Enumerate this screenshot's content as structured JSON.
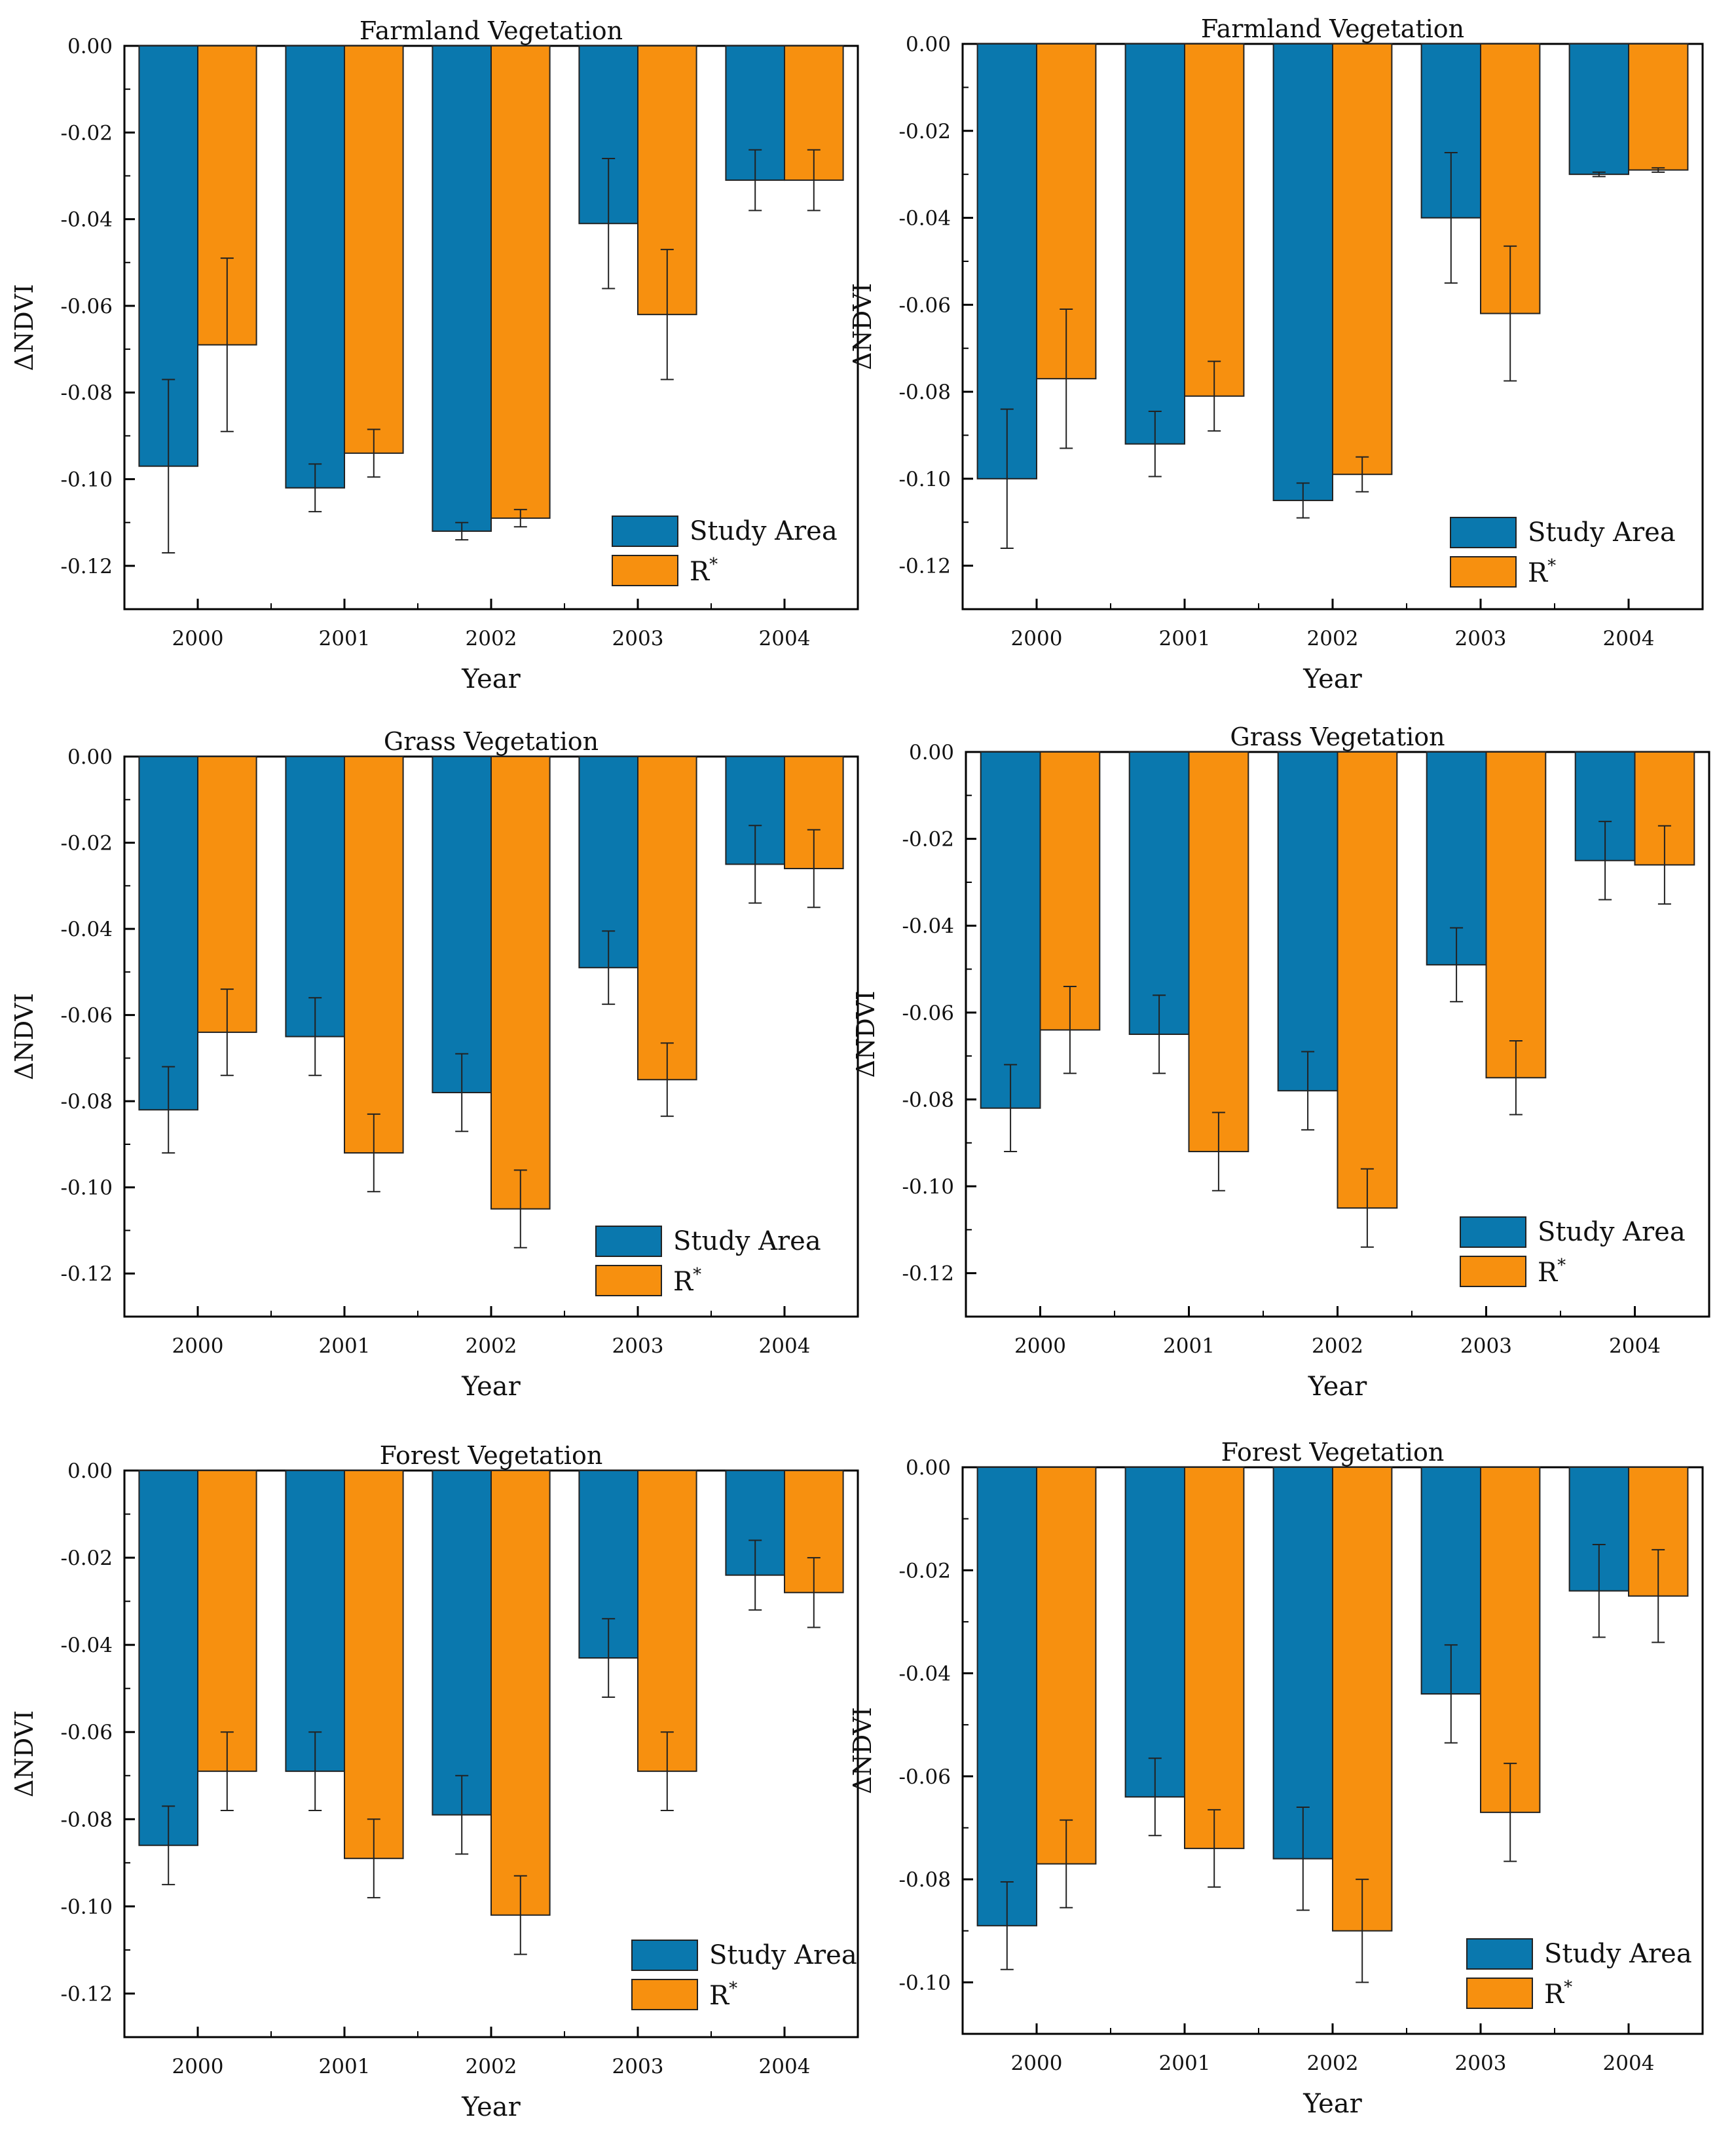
{
  "colors": {
    "study_area": "#0a78ae",
    "r_star": "#f7900f",
    "axis": "#000000"
  },
  "legend": {
    "study_area": "Study Area",
    "r_star_base": "R",
    "r_star_sup": "*"
  },
  "chart_data": [
    {
      "type": "bar",
      "title": "Farmland Vegetation",
      "xlabel": "Year",
      "ylabel": "ΔNDVI",
      "categories": [
        "2000",
        "2001",
        "2002",
        "2003",
        "2004"
      ],
      "ylim": [
        -0.13,
        0.0
      ],
      "yticks": [
        "0.00",
        "-0.02",
        "-0.04",
        "-0.06",
        "-0.08",
        "-0.10",
        "-0.12"
      ],
      "series": [
        {
          "name": "Study Area",
          "values": [
            -0.097,
            -0.102,
            -0.112,
            -0.041,
            -0.031
          ],
          "errors": [
            0.02,
            0.0055,
            0.002,
            0.015,
            0.007
          ]
        },
        {
          "name": "R*",
          "values": [
            -0.069,
            -0.094,
            -0.109,
            -0.062,
            -0.031
          ],
          "errors": [
            0.02,
            0.0055,
            0.002,
            0.015,
            0.007
          ]
        }
      ]
    },
    {
      "type": "bar",
      "title": "Farmland Vegetation",
      "xlabel": "Year",
      "ylabel": "ΔNDVI",
      "categories": [
        "2000",
        "2001",
        "2002",
        "2003",
        "2004"
      ],
      "ylim": [
        -0.13,
        0.0
      ],
      "yticks": [
        "0.00",
        "-0.02",
        "-0.04",
        "-0.06",
        "-0.08",
        "-0.10",
        "-0.12"
      ],
      "series": [
        {
          "name": "Study Area",
          "values": [
            -0.1,
            -0.092,
            -0.105,
            -0.04,
            -0.03
          ],
          "errors": [
            0.016,
            0.0075,
            0.004,
            0.015,
            0.0005
          ]
        },
        {
          "name": "R*",
          "values": [
            -0.077,
            -0.081,
            -0.099,
            -0.062,
            -0.029
          ],
          "errors": [
            0.016,
            0.008,
            0.004,
            0.0155,
            0.0005
          ]
        }
      ]
    },
    {
      "type": "bar",
      "title": "Grass Vegetation",
      "xlabel": "Year",
      "ylabel": "ΔNDVI",
      "categories": [
        "2000",
        "2001",
        "2002",
        "2003",
        "2004"
      ],
      "ylim": [
        -0.13,
        0.0
      ],
      "yticks": [
        "0.00",
        "-0.02",
        "-0.04",
        "-0.06",
        "-0.08",
        "-0.10",
        "-0.12"
      ],
      "series": [
        {
          "name": "Study Area",
          "values": [
            -0.082,
            -0.065,
            -0.078,
            -0.049,
            -0.025
          ],
          "errors": [
            0.01,
            0.009,
            0.009,
            0.0085,
            0.009
          ]
        },
        {
          "name": "R*",
          "values": [
            -0.064,
            -0.092,
            -0.105,
            -0.075,
            -0.026
          ],
          "errors": [
            0.01,
            0.009,
            0.009,
            0.0085,
            0.009
          ]
        }
      ]
    },
    {
      "type": "bar",
      "title": "Grass Vegetation",
      "xlabel": "Year",
      "ylabel": "ΔNDVI",
      "categories": [
        "2000",
        "2001",
        "2002",
        "2003",
        "2004"
      ],
      "ylim": [
        -0.13,
        0.0
      ],
      "yticks": [
        "0.00",
        "-0.02",
        "-0.04",
        "-0.06",
        "-0.08",
        "-0.10",
        "-0.12"
      ],
      "series": [
        {
          "name": "Study Area",
          "values": [
            -0.082,
            -0.065,
            -0.078,
            -0.049,
            -0.025
          ],
          "errors": [
            0.01,
            0.009,
            0.009,
            0.0085,
            0.009
          ]
        },
        {
          "name": "R*",
          "values": [
            -0.064,
            -0.092,
            -0.105,
            -0.075,
            -0.026
          ],
          "errors": [
            0.01,
            0.009,
            0.009,
            0.0085,
            0.009
          ]
        }
      ]
    },
    {
      "type": "bar",
      "title": "Forest Vegetation",
      "xlabel": "Year",
      "ylabel": "ΔNDVI",
      "categories": [
        "2000",
        "2001",
        "2002",
        "2003",
        "2004"
      ],
      "ylim": [
        -0.13,
        0.0
      ],
      "yticks": [
        "0.00",
        "-0.02",
        "-0.04",
        "-0.06",
        "-0.08",
        "-0.10",
        "-0.12"
      ],
      "series": [
        {
          "name": "Study Area",
          "values": [
            -0.086,
            -0.069,
            -0.079,
            -0.043,
            -0.024
          ],
          "errors": [
            0.009,
            0.009,
            0.009,
            0.009,
            0.008
          ]
        },
        {
          "name": "R*",
          "values": [
            -0.069,
            -0.089,
            -0.102,
            -0.069,
            -0.028
          ],
          "errors": [
            0.009,
            0.009,
            0.009,
            0.009,
            0.008
          ]
        }
      ]
    },
    {
      "type": "bar",
      "title": "Forest Vegetation",
      "xlabel": "Year",
      "ylabel": "ΔNDVI",
      "categories": [
        "2000",
        "2001",
        "2002",
        "2003",
        "2004"
      ],
      "ylim": [
        -0.11,
        0.0
      ],
      "yticks": [
        "0.00",
        "-0.02",
        "-0.04",
        "-0.06",
        "-0.08",
        "-0.10"
      ],
      "series": [
        {
          "name": "Study Area",
          "values": [
            -0.089,
            -0.064,
            -0.076,
            -0.044,
            -0.024
          ],
          "errors": [
            0.0085,
            0.0075,
            0.01,
            0.0095,
            0.009
          ]
        },
        {
          "name": "R*",
          "values": [
            -0.077,
            -0.074,
            -0.09,
            -0.067,
            -0.025
          ],
          "errors": [
            0.0085,
            0.0075,
            0.01,
            0.0095,
            0.009
          ]
        }
      ]
    }
  ]
}
